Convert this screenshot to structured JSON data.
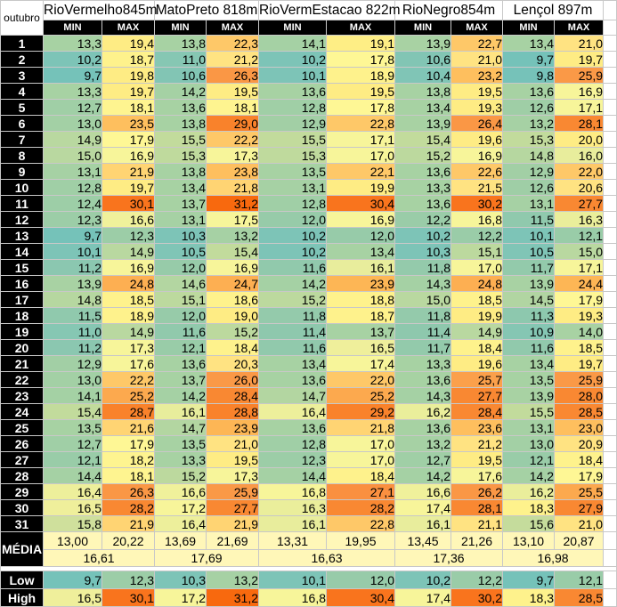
{
  "corner_label": "outubro",
  "stations": [
    "RioVermelho845m",
    "MatoPreto 818m",
    "RioVermEstacao 822m",
    "RioNegro854m",
    "Lençol 897m"
  ],
  "sub_labels": {
    "min": "MIN",
    "max": "MAX"
  },
  "rows": [
    {
      "label": "1",
      "values": [
        "13,3",
        "19,4",
        "13,8",
        "22,3",
        "14,1",
        "19,1",
        "13,9",
        "22,7",
        "13,4",
        "21,0"
      ],
      "colors": [
        "#a7d2a3",
        "#feec84",
        "#a7d2a3",
        "#fec868",
        "#a5d1a4",
        "#feee85",
        "#a8d2a3",
        "#fec868",
        "#a7d2a3",
        "#ffe382"
      ]
    },
    {
      "label": "2",
      "values": [
        "10,2",
        "18,7",
        "11,0",
        "21,2",
        "10,2",
        "17,8",
        "10,6",
        "21,0",
        "9,7",
        "19,7"
      ],
      "colors": [
        "#7dc4b7",
        "#fef28c",
        "#86c7b3",
        "#ffe382",
        "#7dc4b7",
        "#fef795",
        "#82c5b4",
        "#ffe382",
        "#75c2b9",
        "#feec84"
      ]
    },
    {
      "label": "3",
      "values": [
        "9,7",
        "19,8",
        "10,6",
        "26,3",
        "10,1",
        "18,9",
        "10,4",
        "23,2",
        "9,8",
        "25,9"
      ],
      "colors": [
        "#75c2b9",
        "#feec84",
        "#82c5b4",
        "#fa9745",
        "#7dc4b7",
        "#fef28c",
        "#80c5b6",
        "#febf5e",
        "#76c2b9",
        "#fa9947"
      ]
    },
    {
      "label": "4",
      "values": [
        "13,3",
        "19,7",
        "14,2",
        "19,5",
        "13,6",
        "19,5",
        "13,8",
        "19,5",
        "13,6",
        "16,9"
      ],
      "colors": [
        "#a7d2a3",
        "#feec84",
        "#a5d1a4",
        "#feec84",
        "#a7d2a3",
        "#feec84",
        "#a7d2a3",
        "#feec84",
        "#a7d2a3",
        "#f7f59a"
      ]
    },
    {
      "label": "5",
      "values": [
        "12,7",
        "18,1",
        "13,6",
        "18,1",
        "12,8",
        "17,8",
        "13,4",
        "19,3",
        "12,6",
        "17,1"
      ],
      "colors": [
        "#a0cfa6",
        "#fef490",
        "#a7d2a3",
        "#fef490",
        "#a0cfa6",
        "#fef795",
        "#a7d2a3",
        "#feec84",
        "#9fcea6",
        "#f7f59a"
      ]
    },
    {
      "label": "6",
      "values": [
        "13,0",
        "23,5",
        "13,8",
        "29,0",
        "12,9",
        "22,8",
        "13,9",
        "26,4",
        "13,2",
        "28,1"
      ],
      "colors": [
        "#a3d0a5",
        "#febf5e",
        "#a7d2a3",
        "#f9822b",
        "#a2cfa5",
        "#fec868",
        "#a8d2a3",
        "#fa9745",
        "#a6d1a4",
        "#f98832"
      ]
    },
    {
      "label": "7",
      "values": [
        "14,9",
        "17,9",
        "15,5",
        "22,2",
        "15,5",
        "17,1",
        "15,4",
        "19,6",
        "15,3",
        "20,0"
      ],
      "colors": [
        "#b9d8a0",
        "#fef795",
        "#c2db9c",
        "#fec868",
        "#c2db9c",
        "#f7f59a",
        "#c2db9c",
        "#feec84",
        "#c2db9c",
        "#feec84"
      ]
    },
    {
      "label": "8",
      "values": [
        "15,0",
        "16,9",
        "15,3",
        "17,3",
        "15,3",
        "17,0",
        "15,2",
        "16,9",
        "14,8",
        "16,0"
      ],
      "colors": [
        "#b9d8a0",
        "#f7f59a",
        "#bfda9d",
        "#f7f59a",
        "#bfda9d",
        "#f7f59a",
        "#bcd99e",
        "#f7f59a",
        "#b6d7a0",
        "#e8ed9c"
      ]
    },
    {
      "label": "9",
      "values": [
        "13,1",
        "21,9",
        "13,8",
        "23,8",
        "13,5",
        "22,1",
        "13,6",
        "22,6",
        "12,9",
        "22,0"
      ],
      "colors": [
        "#a6d1a4",
        "#ffd473",
        "#a7d2a3",
        "#febf5e",
        "#a7d2a3",
        "#fec868",
        "#a7d2a3",
        "#fec868",
        "#a2cfa5",
        "#fec868"
      ]
    },
    {
      "label": "10",
      "values": [
        "12,8",
        "19,7",
        "13,4",
        "21,8",
        "13,1",
        "19,9",
        "13,3",
        "21,5",
        "12,6",
        "20,6"
      ],
      "colors": [
        "#a0cfa6",
        "#feec84",
        "#a7d2a3",
        "#ffd473",
        "#a6d1a4",
        "#feec84",
        "#a7d2a3",
        "#ffe382",
        "#9fcea6",
        "#ffe382"
      ]
    },
    {
      "label": "11",
      "values": [
        "12,4",
        "30,1",
        "13,7",
        "31,2",
        "12,8",
        "30,4",
        "13,6",
        "30,2",
        "13,1",
        "27,7"
      ],
      "colors": [
        "#9dcea7",
        "#f9741d",
        "#a7d2a3",
        "#f8690e",
        "#a0cfa6",
        "#f9741d",
        "#a7d2a3",
        "#f9741d",
        "#a6d1a4",
        "#f98832"
      ]
    },
    {
      "label": "12",
      "values": [
        "12,3",
        "16,6",
        "13,1",
        "17,5",
        "12,0",
        "16,9",
        "12,2",
        "16,8",
        "11,5",
        "16,3"
      ],
      "colors": [
        "#9ccda7",
        "#f0f19b",
        "#a6d1a4",
        "#f7f59a",
        "#97cba9",
        "#f7f59a",
        "#9acca8",
        "#f7f59a",
        "#90c9ad",
        "#eaee9b"
      ]
    },
    {
      "label": "13",
      "values": [
        "9,7",
        "12,3",
        "10,3",
        "13,2",
        "10,2",
        "12,0",
        "10,2",
        "12,2",
        "10,1",
        "12,1"
      ],
      "colors": [
        "#75c2b9",
        "#9ccda7",
        "#7dc4b7",
        "#a6d1a4",
        "#7dc4b7",
        "#97cba9",
        "#7dc4b7",
        "#9acca8",
        "#7dc4b7",
        "#99cca8"
      ]
    },
    {
      "label": "14",
      "values": [
        "10,1",
        "14,9",
        "10,5",
        "15,4",
        "10,2",
        "13,4",
        "10,3",
        "15,1",
        "10,5",
        "15,0"
      ],
      "colors": [
        "#7dc4b7",
        "#b9d8a0",
        "#80c5b6",
        "#c2db9c",
        "#7dc4b7",
        "#a7d2a3",
        "#7dc4b7",
        "#bcd99e",
        "#80c5b6",
        "#b9d8a0"
      ]
    },
    {
      "label": "15",
      "values": [
        "11,2",
        "16,9",
        "12,0",
        "16,9",
        "11,6",
        "16,1",
        "11,8",
        "17,0",
        "11,7",
        "17,1"
      ],
      "colors": [
        "#8bc7b0",
        "#f7f59a",
        "#97cba9",
        "#f7f59a",
        "#91c9ac",
        "#e8ed9c",
        "#94caab",
        "#f7f59a",
        "#93caab",
        "#f7f59a"
      ]
    },
    {
      "label": "16",
      "values": [
        "13,9",
        "24,8",
        "14,6",
        "24,7",
        "14,2",
        "23,9",
        "14,3",
        "24,8",
        "13,9",
        "24,4"
      ],
      "colors": [
        "#a8d2a3",
        "#fdaf52",
        "#b3d6a1",
        "#fdaf52",
        "#a5d1a4",
        "#fdb655",
        "#a5d1a4",
        "#fdaf52",
        "#a8d2a3",
        "#fdb655"
      ]
    },
    {
      "label": "17",
      "values": [
        "14,8",
        "18,5",
        "15,1",
        "18,6",
        "15,2",
        "18,8",
        "15,0",
        "18,5",
        "14,5",
        "17,9"
      ],
      "colors": [
        "#b6d7a0",
        "#fef28c",
        "#bcd99e",
        "#fef28c",
        "#bcd99e",
        "#fef28c",
        "#b9d8a0",
        "#fef28c",
        "#b1d5a2",
        "#fef795"
      ]
    },
    {
      "label": "18",
      "values": [
        "11,5",
        "18,9",
        "12,0",
        "19,0",
        "11,8",
        "18,7",
        "11,8",
        "19,9",
        "11,3",
        "19,3"
      ],
      "colors": [
        "#90c9ad",
        "#fef28c",
        "#97cba9",
        "#feec84",
        "#94caab",
        "#fef28c",
        "#94caab",
        "#feec84",
        "#8dc8ae",
        "#feec84"
      ]
    },
    {
      "label": "19",
      "values": [
        "11,0",
        "14,9",
        "11,6",
        "15,2",
        "11,4",
        "13,7",
        "11,4",
        "14,9",
        "10,9",
        "14,0"
      ],
      "colors": [
        "#86c7b3",
        "#b9d8a0",
        "#91c9ac",
        "#bcd99e",
        "#8ec8ad",
        "#a7d2a3",
        "#8ec8ad",
        "#b9d8a0",
        "#85c6b3",
        "#a8d2a3"
      ]
    },
    {
      "label": "20",
      "values": [
        "11,2",
        "17,3",
        "12,1",
        "18,4",
        "11,6",
        "16,5",
        "11,7",
        "18,4",
        "11,6",
        "18,5"
      ],
      "colors": [
        "#8bc7b0",
        "#f7f59a",
        "#99cca8",
        "#fef28c",
        "#91c9ac",
        "#efef9b",
        "#93caab",
        "#fef28c",
        "#91c9ac",
        "#fef28c"
      ]
    },
    {
      "label": "21",
      "values": [
        "12,9",
        "17,6",
        "13,6",
        "20,3",
        "13,4",
        "17,4",
        "13,3",
        "19,6",
        "13,4",
        "19,7"
      ],
      "colors": [
        "#a2cfa5",
        "#f7f59a",
        "#a7d2a3",
        "#ffe382",
        "#a7d2a3",
        "#f7f59a",
        "#a7d2a3",
        "#feec84",
        "#a7d2a3",
        "#feec84"
      ]
    },
    {
      "label": "22",
      "values": [
        "13,0",
        "22,2",
        "13,7",
        "26,0",
        "13,6",
        "22,0",
        "13,6",
        "25,7",
        "13,5",
        "25,9"
      ],
      "colors": [
        "#a3d0a5",
        "#fec868",
        "#a7d2a3",
        "#fa9947",
        "#a7d2a3",
        "#fec868",
        "#a7d2a3",
        "#fba04b",
        "#a7d2a3",
        "#fa9947"
      ]
    },
    {
      "label": "23",
      "values": [
        "14,1",
        "25,2",
        "14,2",
        "28,4",
        "14,7",
        "25,2",
        "14,3",
        "27,7",
        "13,9",
        "28,0"
      ],
      "colors": [
        "#a4d1a4",
        "#fca94e",
        "#a5d1a4",
        "#f98832",
        "#b3d6a1",
        "#fca94e",
        "#a5d1a4",
        "#f98832",
        "#a8d2a3",
        "#f98832"
      ]
    },
    {
      "label": "24",
      "values": [
        "15,4",
        "28,7",
        "16,1",
        "28,8",
        "16,4",
        "29,2",
        "16,2",
        "28,4",
        "15,5",
        "28,5"
      ],
      "colors": [
        "#c2db9c",
        "#f9822b",
        "#e8ed9c",
        "#f9822b",
        "#edef9b",
        "#f9822b",
        "#eaee9b",
        "#f98832",
        "#c2db9c",
        "#f98832"
      ]
    },
    {
      "label": "25",
      "values": [
        "13,5",
        "21,6",
        "14,7",
        "23,9",
        "13,6",
        "21,8",
        "13,6",
        "23,6",
        "13,1",
        "23,0"
      ],
      "colors": [
        "#a7d2a3",
        "#ffd473",
        "#b3d6a1",
        "#fdb655",
        "#a7d2a3",
        "#ffd473",
        "#a7d2a3",
        "#febf5e",
        "#a6d1a4",
        "#febf5e"
      ]
    },
    {
      "label": "26",
      "values": [
        "12,7",
        "17,9",
        "13,5",
        "21,0",
        "12,8",
        "17,0",
        "13,2",
        "21,2",
        "13,0",
        "20,9"
      ],
      "colors": [
        "#a0cfa6",
        "#fef795",
        "#a7d2a3",
        "#ffe382",
        "#a0cfa6",
        "#f7f59a",
        "#a6d1a4",
        "#ffe382",
        "#a3d0a5",
        "#ffe382"
      ]
    },
    {
      "label": "27",
      "values": [
        "12,1",
        "18,2",
        "13,3",
        "19,5",
        "12,3",
        "17,0",
        "12,7",
        "19,5",
        "12,1",
        "18,4"
      ],
      "colors": [
        "#99cca8",
        "#fef490",
        "#a7d2a3",
        "#feec84",
        "#9ccda7",
        "#f7f59a",
        "#a0cfa6",
        "#feec84",
        "#99cca8",
        "#fef28c"
      ]
    },
    {
      "label": "28",
      "values": [
        "14,4",
        "18,1",
        "15,2",
        "17,3",
        "14,4",
        "18,4",
        "14,2",
        "17,6",
        "14,2",
        "17,9"
      ],
      "colors": [
        "#a5d1a4",
        "#fef490",
        "#bcd99e",
        "#f7f59a",
        "#a5d1a4",
        "#fef28c",
        "#a5d1a4",
        "#f7f59a",
        "#a5d1a4",
        "#fef795"
      ]
    },
    {
      "label": "29",
      "values": [
        "16,4",
        "26,3",
        "16,6",
        "25,9",
        "16,8",
        "27,1",
        "16,6",
        "26,2",
        "16,2",
        "25,5"
      ],
      "colors": [
        "#edef9b",
        "#fa9745",
        "#f0f19b",
        "#fa9947",
        "#f7f59a",
        "#fa9040",
        "#f0f19b",
        "#fa9745",
        "#eaee9b",
        "#fca94e"
      ]
    },
    {
      "label": "30",
      "values": [
        "16,5",
        "28,2",
        "17,2",
        "27,7",
        "16,3",
        "28,2",
        "17,4",
        "28,1",
        "18,3",
        "27,9"
      ],
      "colors": [
        "#efef9b",
        "#f98832",
        "#f7f59a",
        "#f98832",
        "#eaee9b",
        "#f98832",
        "#f7f59a",
        "#f98832",
        "#fef28c",
        "#f98832"
      ]
    },
    {
      "label": "31",
      "values": [
        "15,8",
        "21,9",
        "16,4",
        "21,9",
        "16,1",
        "22,8",
        "16,1",
        "21,1",
        "15,6",
        "21,0"
      ],
      "colors": [
        "#cfe09c",
        "#ffd473",
        "#edef9b",
        "#ffd473",
        "#e8ed9c",
        "#fec868",
        "#e8ed9c",
        "#ffe382",
        "#c5dc9c",
        "#ffe382"
      ]
    }
  ],
  "media": {
    "label": "MÉDIA",
    "values": [
      "13,00",
      "20,22",
      "13,69",
      "21,69",
      "13,31",
      "19,95",
      "13,45",
      "21,26",
      "13,10",
      "20,87"
    ],
    "averages": [
      "16,61",
      "17,69",
      "16,63",
      "17,36",
      "16,98"
    ]
  },
  "low": {
    "label": "Low",
    "values": [
      "9,7",
      "12,3",
      "10,3",
      "13,2",
      "10,1",
      "12,0",
      "10,2",
      "12,2",
      "9,7",
      "12,1"
    ],
    "colors": [
      "#75c2b9",
      "#9ccda7",
      "#7dc4b7",
      "#a6d1a4",
      "#7dc4b7",
      "#97cba9",
      "#7dc4b7",
      "#9acca8",
      "#75c2b9",
      "#99cca8"
    ]
  },
  "high": {
    "label": "High",
    "values": [
      "16,5",
      "30,1",
      "17,2",
      "31,2",
      "16,8",
      "30,4",
      "17,4",
      "30,2",
      "18,3",
      "28,5"
    ],
    "colors": [
      "#efef9b",
      "#f9741d",
      "#f7f59a",
      "#f8690e",
      "#f7f59a",
      "#f9741d",
      "#f7f59a",
      "#f9741d",
      "#fef28c",
      "#f98832"
    ]
  }
}
